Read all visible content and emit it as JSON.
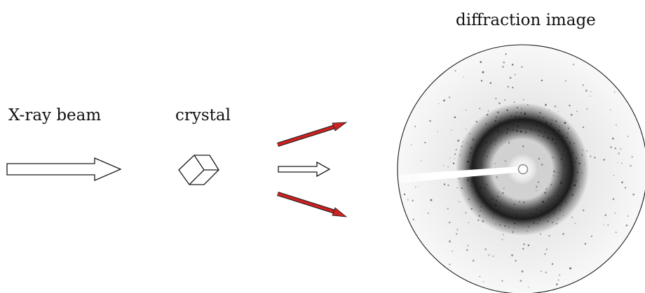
{
  "labels": {
    "beam": "X-ray beam",
    "crystal": "crystal",
    "diffraction": "diffraction image"
  },
  "colors": {
    "outline": "#1a1a1a",
    "diffracted_ray": "#cc2222",
    "pattern_dark": "#222222",
    "background": "#ffffff"
  }
}
